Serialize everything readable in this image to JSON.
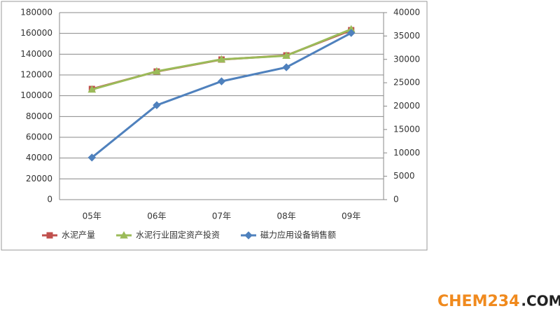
{
  "chart_data": {
    "type": "line",
    "categories": [
      "05年",
      "06年",
      "07年",
      "08年",
      "09年"
    ],
    "series": [
      {
        "name": "水泥产量",
        "color": "#c0504d",
        "marker": "square",
        "values": [
          106500,
          123300,
          134800,
          138800,
          163100
        ]
      },
      {
        "name": "水泥行业固定资产投资",
        "color": "#9bbb59",
        "marker": "triangle",
        "values": [
          106000,
          123500,
          135000,
          138500,
          164000
        ]
      },
      {
        "name": "磁力应用设备销售额",
        "color": "#4f81bd",
        "marker": "diamond",
        "axis": "y2",
        "values": [
          9000,
          20200,
          25300,
          28300,
          35650
        ]
      }
    ],
    "ylim": [
      0,
      180000
    ],
    "yticks": [
      0,
      20000,
      40000,
      60000,
      80000,
      100000,
      120000,
      140000,
      160000,
      180000
    ],
    "y2lim": [
      0,
      40000
    ],
    "y2ticks": [
      0,
      5000,
      10000,
      15000,
      20000,
      25000,
      30000,
      35000,
      40000
    ],
    "grid": true,
    "legend": "bottom"
  },
  "watermark": {
    "brand": "CHEM234",
    "suffix": ".COM"
  }
}
